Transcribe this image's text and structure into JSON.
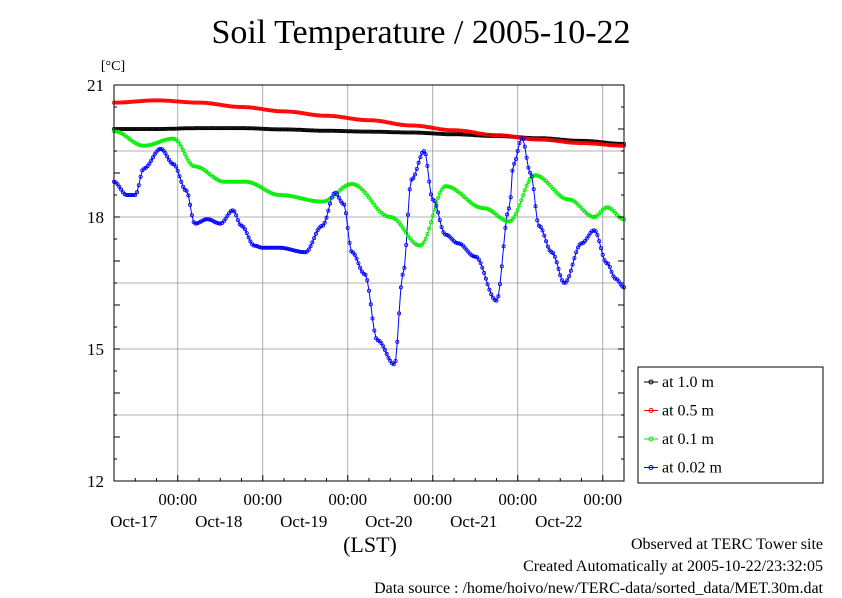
{
  "page": {
    "title": "Soil Temperature / 2005-10-22",
    "footer": {
      "observed": "Observed at TERC Tower site",
      "created": "Created Automatically at 2005-10-22/23:32:05",
      "source": "Data source : /home/hoivo/new/TERC-data/sorted_data/MET.30m.dat"
    }
  },
  "chart_data": {
    "type": "line",
    "title": "Soil Temperature / 2005-10-22",
    "ylabel": "[°C]",
    "xlabel": "(LST)",
    "ylim": [
      12,
      21
    ],
    "yticks": [
      "12",
      "15",
      "18",
      "21"
    ],
    "x_unit": "day",
    "xlim": [
      16.25,
      22.25
    ],
    "x_ticks": [
      {
        "x": 17,
        "time": "00:00",
        "date": "Oct-17"
      },
      {
        "x": 18,
        "time": "00:00",
        "date": "Oct-18"
      },
      {
        "x": 19,
        "time": "00:00",
        "date": "Oct-19"
      },
      {
        "x": 20,
        "time": "00:00",
        "date": "Oct-20"
      },
      {
        "x": 21,
        "time": "00:00",
        "date": "Oct-21"
      },
      {
        "x": 22,
        "time": "00:00",
        "date": "Oct-22"
      }
    ],
    "grid": true,
    "legend_position": "bottom-right",
    "series": [
      {
        "name": "at 1.0 m",
        "color": "#000000",
        "x": [
          16.25,
          16.75,
          17.25,
          17.75,
          18.25,
          18.75,
          19.25,
          19.75,
          20.25,
          20.75,
          21.25,
          21.75,
          22.25
        ],
        "y": [
          20.0,
          20.0,
          20.02,
          20.02,
          19.99,
          19.96,
          19.94,
          19.92,
          19.88,
          19.84,
          19.79,
          19.73,
          19.66
        ]
      },
      {
        "name": "at 0.5 m",
        "color": "#ff0000",
        "x": [
          16.25,
          16.75,
          17.25,
          17.75,
          18.25,
          18.75,
          19.25,
          19.75,
          20.25,
          20.75,
          21.25,
          21.75,
          22.25
        ],
        "y": [
          20.6,
          20.65,
          20.6,
          20.5,
          20.4,
          20.3,
          20.2,
          20.08,
          19.97,
          19.86,
          19.76,
          19.68,
          19.62
        ]
      },
      {
        "name": "at 0.1 m",
        "color": "#00ee00",
        "x": [
          16.25,
          16.6,
          16.95,
          17.2,
          17.55,
          17.8,
          18.2,
          18.7,
          19.05,
          19.5,
          19.85,
          20.15,
          20.6,
          20.9,
          21.2,
          21.6,
          21.9,
          22.05,
          22.25
        ],
        "y": [
          19.95,
          19.62,
          19.78,
          19.15,
          18.8,
          18.8,
          18.5,
          18.35,
          18.75,
          18.0,
          17.35,
          18.7,
          18.2,
          17.9,
          18.95,
          18.4,
          18.0,
          18.22,
          17.95
        ]
      },
      {
        "name": "at 0.02 m",
        "color": "#0000ff",
        "x": [
          16.25,
          16.4,
          16.5,
          16.6,
          16.8,
          16.95,
          17.1,
          17.2,
          17.35,
          17.5,
          17.65,
          17.75,
          17.9,
          18.0,
          18.2,
          18.5,
          18.7,
          18.85,
          18.95,
          19.05,
          19.2,
          19.35,
          19.55,
          19.65,
          19.75,
          19.9,
          20.0,
          20.15,
          20.3,
          20.5,
          20.75,
          20.9,
          20.95,
          21.05,
          21.15,
          21.25,
          21.4,
          21.55,
          21.75,
          21.9,
          22.05,
          22.15,
          22.25
        ],
        "y": [
          18.8,
          18.5,
          18.5,
          19.1,
          19.55,
          19.2,
          18.6,
          17.85,
          17.95,
          17.85,
          18.15,
          17.8,
          17.35,
          17.3,
          17.3,
          17.2,
          17.8,
          18.55,
          18.3,
          17.2,
          16.7,
          15.2,
          14.65,
          16.7,
          18.85,
          19.5,
          18.4,
          17.6,
          17.4,
          17.1,
          16.1,
          18.2,
          19.2,
          19.8,
          19.0,
          17.8,
          17.2,
          16.5,
          17.4,
          17.7,
          16.95,
          16.6,
          16.4
        ]
      }
    ]
  }
}
